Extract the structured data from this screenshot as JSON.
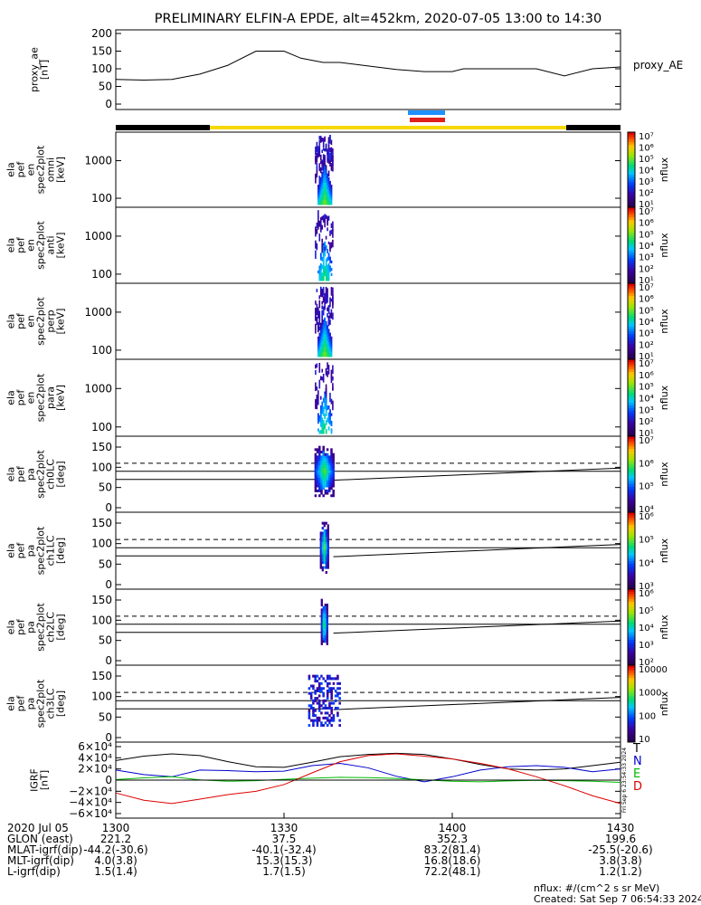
{
  "title": "PRELIMINARY ELFIN-A EPDE, alt=452km, 2020-07-05 13:00 to 14:30",
  "colors": {
    "ae_line": "#000000",
    "orbit_black": "#000000",
    "orbit_yellow": "#f5d800",
    "marker_blue": "#1e90ff",
    "marker_red": "#e0201a",
    "grf_n": "#0000cc",
    "grf_e": "#00bb00",
    "grf_d": "#dd0000",
    "grf_t": "#000000"
  },
  "panels": [
    {
      "id": "proxy_ae",
      "ylabel": [
        "proxy_ae",
        "[nT]"
      ],
      "ticks": [
        "200",
        "150",
        "100",
        "50",
        "0"
      ],
      "right_label": "proxy_AE"
    },
    {
      "id": "omni",
      "ylabel": [
        "ela",
        "pef",
        "en",
        "spec2plot",
        "omni",
        "[keV]"
      ],
      "ticks": [
        "1000",
        "100"
      ],
      "colorbar_ticks": [
        "10⁷",
        "10⁶",
        "10⁵",
        "10⁴",
        "10³",
        "10²",
        "10¹"
      ],
      "colorbar_label": "nflux"
    },
    {
      "id": "anti",
      "ylabel": [
        "ela",
        "pef",
        "en",
        "spec2plot",
        "anti",
        "[keV]"
      ],
      "ticks": [
        "1000",
        "100"
      ],
      "colorbar_ticks": [
        "10⁷",
        "10⁶",
        "10⁵",
        "10⁴",
        "10³",
        "10²",
        "10¹"
      ],
      "colorbar_label": "nflux"
    },
    {
      "id": "perp",
      "ylabel": [
        "ela",
        "pef",
        "en",
        "spec2plot",
        "perp",
        "[keV]"
      ],
      "ticks": [
        "1000",
        "100"
      ],
      "colorbar_ticks": [
        "10⁷",
        "10⁶",
        "10⁵",
        "10⁴",
        "10³",
        "10²",
        "10¹"
      ],
      "colorbar_label": "nflux"
    },
    {
      "id": "para",
      "ylabel": [
        "ela",
        "pef",
        "en",
        "spec2plot",
        "para",
        "[keV]"
      ],
      "ticks": [
        "1000",
        "100"
      ],
      "colorbar_ticks": [
        "10⁷",
        "10⁶",
        "10⁵",
        "10⁴",
        "10³",
        "10²",
        "10¹"
      ],
      "colorbar_label": "nflux"
    },
    {
      "id": "ch0",
      "ylabel": [
        "ela",
        "pef",
        "pa",
        "spec2plot",
        "ch0LC",
        "[deg]"
      ],
      "ticks": [
        "150",
        "100",
        "50",
        "0"
      ],
      "colorbar_ticks": [
        "10⁷",
        "10⁶",
        "10⁵",
        "10⁴"
      ],
      "colorbar_label": "nflux"
    },
    {
      "id": "ch1",
      "ylabel": [
        "ela",
        "pef",
        "pa",
        "spec2plot",
        "ch1LC",
        "[deg]"
      ],
      "ticks": [
        "150",
        "100",
        "50",
        "0"
      ],
      "colorbar_ticks": [
        "10⁶",
        "10⁵",
        "10⁴",
        "10³"
      ],
      "colorbar_label": "nflux"
    },
    {
      "id": "ch2",
      "ylabel": [
        "ela",
        "pef",
        "pa",
        "spec2plot",
        "ch2LC",
        "[deg]"
      ],
      "ticks": [
        "150",
        "100",
        "50",
        "0"
      ],
      "colorbar_ticks": [
        "10⁶",
        "10⁵",
        "10⁴",
        "10³",
        "10²"
      ],
      "colorbar_label": "nflux"
    },
    {
      "id": "ch3",
      "ylabel": [
        "ela",
        "pef",
        "pa",
        "spec2plot",
        "ch3LC",
        "[deg]"
      ],
      "ticks": [
        "150",
        "100",
        "50",
        "0"
      ],
      "colorbar_ticks": [
        "10000",
        "1000",
        "100",
        "10"
      ],
      "colorbar_label": "nflux"
    },
    {
      "id": "igrf",
      "ylabel": [
        "IGRF",
        "[nT]"
      ],
      "ticks": [
        "6×10⁴",
        "4×10⁴",
        "2×10⁴",
        "0",
        "−2×10⁴",
        "−4×10⁴",
        "−6×10⁴"
      ],
      "legend": [
        "T",
        "N",
        "E",
        "D"
      ],
      "side_note": "Fri Sep 6 23:54:33 2024"
    }
  ],
  "chart_data": [
    {
      "type": "line",
      "panel": "proxy_ae",
      "ylabel": "proxy_ae [nT]",
      "ylim": [
        0,
        200
      ],
      "xlim": [
        "13:00",
        "14:30"
      ],
      "series": [
        {
          "name": "proxy_AE",
          "x": [
            0,
            5,
            10,
            15,
            20,
            25,
            30,
            33,
            37,
            40,
            45,
            50,
            55,
            60,
            62,
            65,
            70,
            75,
            80,
            85,
            90
          ],
          "values": [
            70,
            68,
            70,
            85,
            110,
            150,
            150,
            130,
            118,
            118,
            108,
            98,
            92,
            92,
            100,
            100,
            100,
            100,
            80,
            100,
            105
          ]
        }
      ]
    },
    {
      "type": "heatmap",
      "panel": "omni",
      "ylim_keV": [
        60,
        5000
      ],
      "time_window": [
        "13:35",
        "13:39"
      ],
      "peak_energy_keV": 100,
      "color_range": [
        "10¹",
        "10⁷"
      ]
    },
    {
      "type": "heatmap",
      "panel": "anti",
      "ylim_keV": [
        60,
        5000
      ],
      "time_window": [
        "13:35",
        "13:39"
      ],
      "peak_energy_keV": 100,
      "color_range": [
        "10¹",
        "10⁷"
      ]
    },
    {
      "type": "heatmap",
      "panel": "perp",
      "ylim_keV": [
        60,
        5000
      ],
      "time_window": [
        "13:35",
        "13:39"
      ],
      "peak_energy_keV": 100,
      "color_range": [
        "10¹",
        "10⁷"
      ]
    },
    {
      "type": "heatmap",
      "panel": "para",
      "ylim_keV": [
        60,
        5000
      ],
      "time_window": [
        "13:35",
        "13:39"
      ],
      "peak_energy_keV": 100,
      "color_range": [
        "10¹",
        "10⁷"
      ]
    },
    {
      "type": "heatmap",
      "panel": "ch0",
      "ylim": [
        0,
        180
      ],
      "lines_deg": [
        70,
        90,
        110
      ],
      "time_window": [
        "13:36",
        "13:38"
      ]
    },
    {
      "type": "heatmap",
      "panel": "ch1",
      "ylim": [
        0,
        180
      ],
      "lines_deg": [
        70,
        90,
        110
      ],
      "time_window": [
        "13:36",
        "13:38"
      ]
    },
    {
      "type": "heatmap",
      "panel": "ch2",
      "ylim": [
        0,
        180
      ],
      "lines_deg": [
        70,
        90,
        110
      ],
      "time_window": [
        "13:36",
        "13:38"
      ]
    },
    {
      "type": "heatmap",
      "panel": "ch3",
      "ylim": [
        0,
        180
      ],
      "lines_deg": [
        70,
        90,
        110
      ],
      "time_window": [
        "13:36",
        "13:38"
      ]
    },
    {
      "type": "line",
      "panel": "igrf",
      "ylabel": "IGRF [nT]",
      "ylim": [
        -60000,
        60000
      ],
      "series": [
        {
          "name": "T",
          "x": [
            0,
            5,
            10,
            15,
            20,
            25,
            30,
            35,
            40,
            45,
            50,
            55,
            60,
            65,
            70,
            75,
            80,
            85,
            90
          ],
          "values": [
            35000,
            43000,
            47000,
            44000,
            33000,
            24000,
            23000,
            32000,
            42000,
            46000,
            48000,
            46000,
            38000,
            28000,
            20000,
            18000,
            20000,
            26000,
            32000
          ]
        },
        {
          "name": "N",
          "x": [
            0,
            5,
            10,
            15,
            20,
            25,
            30,
            35,
            40,
            45,
            50,
            55,
            60,
            65,
            70,
            75,
            80,
            85,
            90
          ],
          "values": [
            18000,
            10000,
            6000,
            18000,
            17000,
            15000,
            16000,
            26000,
            30000,
            22000,
            7000,
            -3000,
            6000,
            18000,
            24000,
            26000,
            23000,
            15000,
            20000
          ]
        },
        {
          "name": "E",
          "x": [
            0,
            5,
            10,
            15,
            20,
            25,
            30,
            35,
            40,
            45,
            50,
            55,
            60,
            65,
            70,
            75,
            80,
            85,
            90
          ],
          "values": [
            1000,
            4000,
            6000,
            500,
            -2000,
            -1000,
            1500,
            3500,
            5000,
            4500,
            3000,
            500,
            -2000,
            -3000,
            -1500,
            -500,
            -1000,
            -2000,
            -4000
          ]
        },
        {
          "name": "D",
          "x": [
            0,
            5,
            10,
            15,
            20,
            25,
            30,
            35,
            40,
            45,
            50,
            55,
            60,
            65,
            70,
            75,
            80,
            85,
            90
          ],
          "values": [
            -23000,
            -36000,
            -42000,
            -34000,
            -26000,
            -20000,
            -8000,
            13000,
            33000,
            44000,
            47000,
            43000,
            38000,
            30000,
            20000,
            6000,
            -10000,
            -28000,
            -42000
          ]
        }
      ]
    }
  ],
  "footer": {
    "rows": [
      {
        "label": "2020 Jul 05",
        "values": [
          "1300",
          "1330",
          "1400",
          "1430"
        ]
      },
      {
        "label": "GLON (east)",
        "values": [
          "221.2",
          "37.5",
          "352.3",
          "199.6"
        ]
      },
      {
        "label": "MLAT-igrf(dip)",
        "values": [
          "-44.2(-30.6)",
          "-40.1(-32.4)",
          "83.2(81.4)",
          "-25.5(-20.6)"
        ]
      },
      {
        "label": "MLT-igrf(dip)",
        "values": [
          "4.0(3.8)",
          "15.3(15.3)",
          "16.8(18.6)",
          "3.8(3.8)"
        ]
      },
      {
        "label": "L-igrf(dip)",
        "values": [
          "1.5(1.4)",
          "1.7(1.5)",
          "72.2(48.1)",
          "1.2(1.2)"
        ]
      }
    ],
    "units": "nflux: #/(cm^2 s sr MeV)",
    "created": "Created: Sat Sep  7 06:54:33 2024"
  }
}
